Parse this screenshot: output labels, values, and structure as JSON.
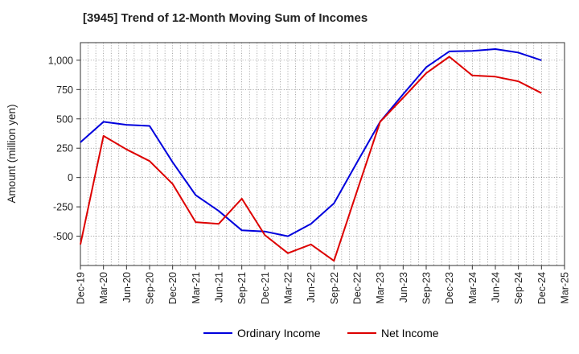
{
  "chart_data": {
    "type": "line",
    "title": "[3945]  Trend of 12-Month Moving Sum of Incomes",
    "xlabel": "",
    "ylabel": "Amount (million yen)",
    "x": [
      "Dec-19",
      "Mar-20",
      "Jun-20",
      "Sep-20",
      "Dec-20",
      "Mar-21",
      "Jun-21",
      "Sep-21",
      "Dec-21",
      "Mar-22",
      "Jun-22",
      "Sep-22",
      "Dec-22",
      "Mar-23",
      "Jun-23",
      "Sep-23",
      "Dec-23",
      "Mar-24",
      "Jun-24",
      "Sep-24",
      "Dec-24",
      "Mar-25"
    ],
    "ylim": [
      -750,
      1150
    ],
    "yticks": [
      -500,
      -250,
      0,
      250,
      500,
      750,
      1000
    ],
    "ytick_labels": [
      "-500",
      "-250",
      "0",
      "250",
      "500",
      "750",
      "1,000"
    ],
    "grid": true,
    "legend_position": "bottom-center",
    "series": [
      {
        "name": "Ordinary Income",
        "color": "#0000dd",
        "values": [
          300,
          475,
          450,
          440,
          130,
          -150,
          -285,
          -450,
          -460,
          -500,
          -395,
          -220,
          130,
          475,
          710,
          940,
          1075,
          1080,
          1095,
          1065,
          1000,
          null
        ]
      },
      {
        "name": "Net Income",
        "color": "#dd0000",
        "values": [
          -570,
          355,
          240,
          140,
          -55,
          -380,
          -395,
          -180,
          -490,
          -645,
          -570,
          -710,
          -115,
          475,
          680,
          890,
          1030,
          870,
          860,
          820,
          720,
          null
        ]
      }
    ]
  }
}
